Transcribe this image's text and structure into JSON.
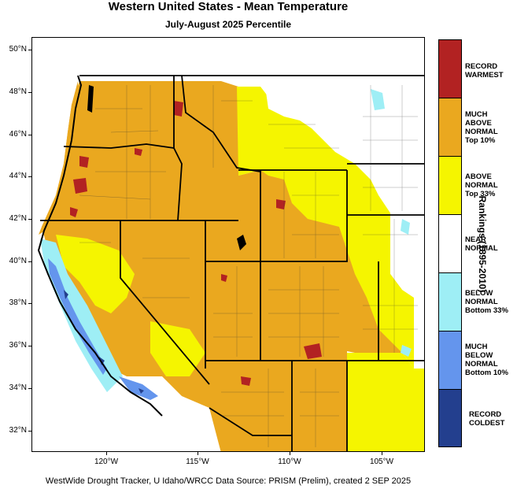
{
  "title": "Western United States - Mean Temperature",
  "subtitle": "July-August 2025 Percentile",
  "credit": "WestWide Drought Tracker, U Idaho/WRCC Data Source: PRISM (Prelim), created  2 SEP 2025",
  "axes": {
    "latitude_labels": [
      "50°N",
      "48°N",
      "46°N",
      "44°N",
      "42°N",
      "40°N",
      "38°N",
      "36°N",
      "34°N",
      "32°N"
    ],
    "longitude_labels": [
      "120°W",
      "115°W",
      "110°W",
      "105°W"
    ]
  },
  "legend": {
    "title": "Rankings (1895-2010)",
    "items": [
      {
        "lines": [
          "RECORD",
          "WARMEST"
        ],
        "color": "#b22222"
      },
      {
        "lines": [
          "MUCH",
          "ABOVE",
          "NORMAL",
          "Top 10%"
        ],
        "color": "#eaa81f"
      },
      {
        "lines": [
          "ABOVE",
          "NORMAL",
          "Top 33%"
        ],
        "color": "#f5f500"
      },
      {
        "lines": [
          "NEAR",
          "NORMAL"
        ],
        "color": "#ffffff"
      },
      {
        "lines": [
          "BELOW",
          "NORMAL",
          "Bottom 33%"
        ],
        "color": "#9eeef5"
      },
      {
        "lines": [
          "MUCH",
          "BELOW",
          "NORMAL",
          "Bottom 10%"
        ],
        "color": "#6495ed"
      },
      {
        "lines": [
          "RECORD",
          "COLDEST"
        ],
        "color": "#233f8e"
      }
    ]
  },
  "colors": {
    "record_warmest": "#b22222",
    "much_above": "#eaa81f",
    "above": "#f5f500",
    "near": "#ffffff",
    "below": "#9eeef5",
    "much_below": "#6495ed",
    "record_coldest": "#233f8e"
  }
}
